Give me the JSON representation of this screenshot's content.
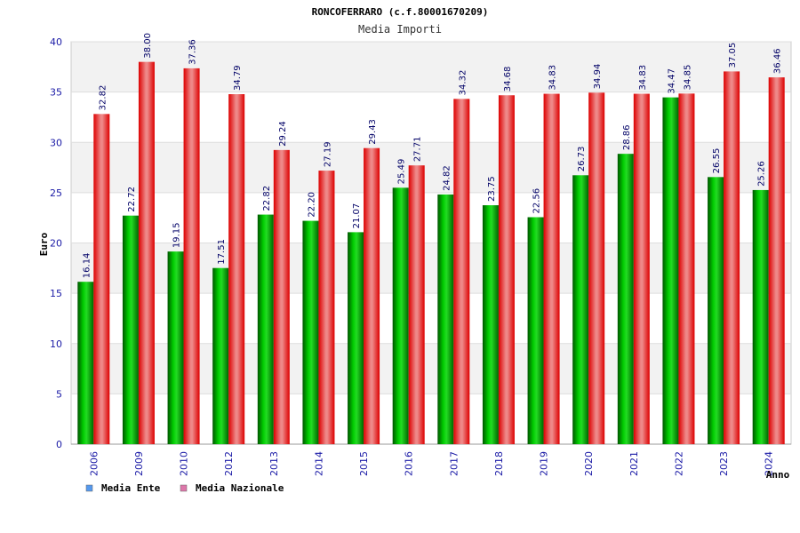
{
  "chart_data": {
    "type": "bar",
    "title": "RONCOFERRARO (c.f.80001670209)",
    "subtitle": "Media Importi",
    "xlabel": "Anno",
    "ylabel": "Euro",
    "ylim": [
      0,
      40
    ],
    "yticks": [
      "0",
      "5",
      "10",
      "15",
      "20",
      "25",
      "30",
      "35",
      "40"
    ],
    "categories": [
      "2006",
      "2009",
      "2010",
      "2012",
      "2013",
      "2014",
      "2015",
      "2016",
      "2017",
      "2018",
      "2019",
      "2020",
      "2021",
      "2022",
      "2023",
      "2024"
    ],
    "series": [
      {
        "name": "Media Ente",
        "color": "#00aa00",
        "legend_color": "#5599ee",
        "values": [
          16.14,
          22.72,
          19.15,
          17.51,
          22.82,
          22.2,
          21.07,
          25.49,
          24.82,
          23.75,
          22.56,
          26.73,
          28.86,
          34.47,
          26.55,
          25.26
        ],
        "labels": [
          "16.14",
          "22.72",
          "19.15",
          "17.51",
          "22.82",
          "22.20",
          "21.07",
          "25.49",
          "24.82",
          "23.75",
          "22.56",
          "26.73",
          "28.86",
          "34.47",
          "26.55",
          "25.26"
        ]
      },
      {
        "name": "Media Nazionale",
        "color": "#ee1111",
        "legend_color": "#dd77aa",
        "values": [
          32.82,
          38.0,
          37.36,
          34.79,
          29.24,
          27.19,
          29.43,
          27.71,
          34.32,
          34.68,
          34.83,
          34.94,
          34.83,
          34.85,
          37.05,
          36.46
        ],
        "labels": [
          "32.82",
          "38.00",
          "37.36",
          "34.79",
          "29.24",
          "27.19",
          "29.43",
          "27.71",
          "34.32",
          "34.68",
          "34.83",
          "34.94",
          "34.83",
          "34.85",
          "37.05",
          "36.46"
        ]
      }
    ],
    "grid": true,
    "legend_position": "bottom-left"
  }
}
